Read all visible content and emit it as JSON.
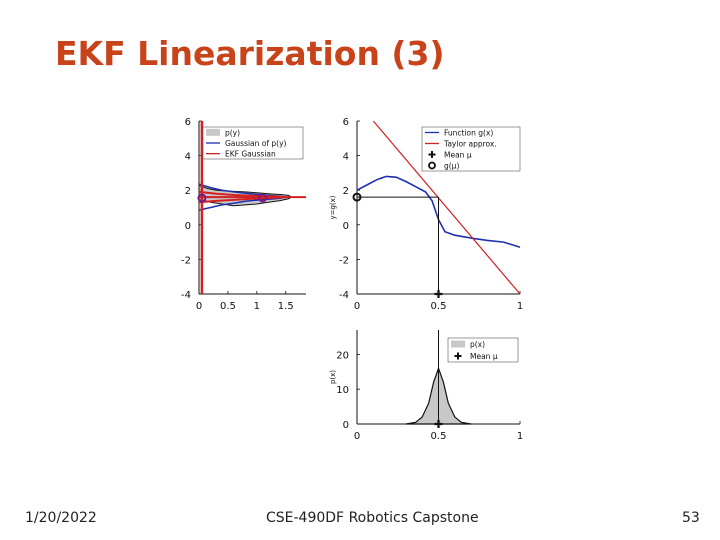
{
  "slide": {
    "title": "EKF Linearization (3)",
    "date": "1/20/2022",
    "course": "CSE-490DF Robotics Capstone",
    "page_number": "53"
  },
  "colors": {
    "title": "#c8421a",
    "function": "#1e2fb0",
    "taylor": "#d42020",
    "fill": "#c8c8c8"
  },
  "chart_data": [
    {
      "type": "line",
      "id": "output-distribution",
      "x_ticks": [
        "0",
        "0.5",
        "1",
        "1.5"
      ],
      "y_ticks": [
        "6",
        "4",
        "2",
        "0",
        "-2",
        "-4"
      ],
      "xlim": [
        0,
        1.85
      ],
      "ylim": [
        -4,
        6
      ],
      "legend": [
        "p(y)",
        "Gaussian of p(y)",
        "EKF Gaussian"
      ],
      "legend_position": "top-right",
      "series": [
        {
          "name": "p(y)",
          "kind": "area",
          "x": [
            0.0,
            0.06,
            0.15,
            0.3,
            0.5,
            0.8,
            1.0,
            1.2,
            1.4,
            1.55,
            1.6,
            1.55,
            1.4,
            1.2,
            1.0,
            0.8,
            0.6,
            0.4,
            0.2,
            0.1,
            0.0
          ],
          "y": [
            2.3,
            2.2,
            2.1,
            2.0,
            1.95,
            1.9,
            1.85,
            1.8,
            1.75,
            1.7,
            1.6,
            1.5,
            1.4,
            1.3,
            1.2,
            1.15,
            1.1,
            1.2,
            1.3,
            1.4,
            1.45
          ]
        },
        {
          "name": "Gaussian of p(y)",
          "x": [
            0.0,
            0.2,
            0.4,
            0.6,
            0.8,
            1.0,
            1.2,
            1.4,
            1.5,
            1.4,
            1.2,
            1.0,
            0.8,
            0.6,
            0.4,
            0.2,
            0.0
          ],
          "y": [
            2.35,
            2.15,
            2.0,
            1.9,
            1.82,
            1.76,
            1.7,
            1.65,
            1.6,
            1.53,
            1.48,
            1.43,
            1.36,
            1.25,
            1.15,
            1.0,
            0.85
          ]
        },
        {
          "name": "EKF Gaussian",
          "x": [
            0.0,
            0.3,
            0.6,
            0.9,
            1.2,
            1.4,
            1.5,
            1.4,
            1.2,
            0.9,
            0.6,
            0.3,
            0.0
          ],
          "y": [
            1.9,
            1.8,
            1.72,
            1.68,
            1.64,
            1.62,
            1.6,
            1.58,
            1.55,
            1.5,
            1.44,
            1.38,
            1.3
          ]
        },
        {
          "name": "EKF mean",
          "x": [
            0.0,
            1.85
          ],
          "y": [
            1.6,
            1.6
          ]
        },
        {
          "name": "vertical axis line",
          "x": [
            0.05,
            0.05
          ],
          "y": [
            -4,
            6
          ]
        }
      ],
      "markers": [
        {
          "shape": "circle",
          "x": 0.05,
          "y": 1.55
        },
        {
          "shape": "circle",
          "x": 1.1,
          "y": 1.55
        }
      ]
    },
    {
      "type": "line",
      "id": "function-taylor",
      "ylabel": "y=g(x)",
      "x_ticks": [
        "0",
        "0.5",
        "1"
      ],
      "y_ticks": [
        "6",
        "4",
        "2",
        "0",
        "-2",
        "-4"
      ],
      "xlim": [
        0,
        1
      ],
      "ylim": [
        -4,
        6
      ],
      "legend": [
        "Function g(x)",
        "Taylor approx.",
        "Mean μ",
        "g(μ)"
      ],
      "legend_position": "top-right",
      "series": [
        {
          "name": "Function g(x)",
          "x": [
            0.0,
            0.06,
            0.12,
            0.18,
            0.24,
            0.3,
            0.36,
            0.42,
            0.46,
            0.5,
            0.54,
            0.6,
            0.66,
            0.72,
            0.8,
            0.9,
            1.0
          ],
          "y": [
            2.0,
            2.3,
            2.6,
            2.8,
            2.75,
            2.5,
            2.2,
            1.9,
            1.4,
            0.3,
            -0.4,
            -0.6,
            -0.7,
            -0.8,
            -0.9,
            -1.0,
            -1.3
          ]
        },
        {
          "name": "Taylor approx.",
          "x": [
            0.1,
            1.0
          ],
          "y": [
            6.0,
            -4.0
          ]
        },
        {
          "name": "mean vertical",
          "x": [
            0.5,
            0.5
          ],
          "y": [
            -4,
            1.6
          ]
        },
        {
          "name": "g(mu) horizontal",
          "x": [
            0.0,
            0.5
          ],
          "y": [
            1.6,
            1.6
          ]
        }
      ],
      "markers": [
        {
          "shape": "plus",
          "x": 0.5,
          "y": -4
        },
        {
          "shape": "circle",
          "x": 0.0,
          "y": 1.6
        }
      ]
    },
    {
      "type": "area",
      "id": "input-distribution",
      "ylabel": "p(x)",
      "x_ticks": [
        "0",
        "0.5",
        "1"
      ],
      "y_ticks": [
        "20",
        "10",
        "0"
      ],
      "xlim": [
        0,
        1
      ],
      "ylim": [
        0,
        27
      ],
      "legend": [
        "p(x)",
        "Mean μ"
      ],
      "legend_position": "top-right",
      "series": [
        {
          "name": "p(x)",
          "x": [
            0.3,
            0.36,
            0.4,
            0.44,
            0.47,
            0.5,
            0.53,
            0.56,
            0.6,
            0.64,
            0.7
          ],
          "y": [
            0,
            0.5,
            2,
            6,
            12,
            16,
            12,
            6,
            2,
            0.5,
            0
          ]
        },
        {
          "name": "mean line",
          "x": [
            0.5,
            0.5
          ],
          "y": [
            0,
            27
          ]
        }
      ],
      "markers": [
        {
          "shape": "plus",
          "x": 0.5,
          "y": 0
        }
      ]
    }
  ]
}
